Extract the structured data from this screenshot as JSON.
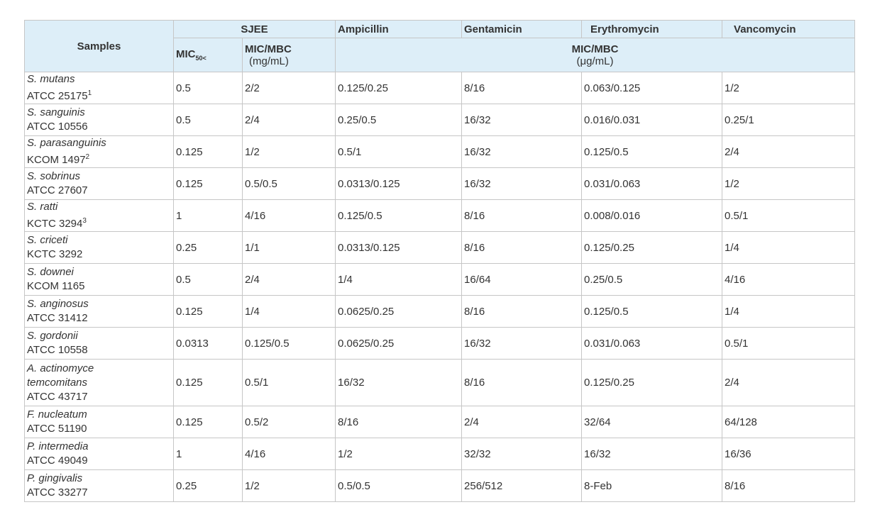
{
  "header": {
    "samples": "Samples",
    "sjee": "SJEE",
    "ampicillin": "Ampicillin",
    "gentamicin": "Gentamicin",
    "erythromycin": "Erythromycin",
    "vancomycin": "Vancomycin",
    "mic_base": "MIC",
    "mic_sub": "50<",
    "mic_mbc": "MIC/MBC",
    "unit_sjee": "(mg/mL)",
    "unit_abx": "(μg/mL)"
  },
  "rows": [
    {
      "species": "S. mutans",
      "strain": "ATCC 25175",
      "sup": "1",
      "mic50": "0.5",
      "sjee": "2/2",
      "ampicillin": "0.125/0.25",
      "gentamicin": "8/16",
      "erythromycin": "0.063/0.125",
      "vancomycin": "1/2"
    },
    {
      "species": "S. sanguinis",
      "strain": "ATCC 10556",
      "sup": "",
      "mic50": "0.5",
      "sjee": "2/4",
      "ampicillin": "0.25/0.5",
      "gentamicin": "16/32",
      "erythromycin": "0.016/0.031",
      "vancomycin": "0.25/1"
    },
    {
      "species": "S. parasanguinis",
      "strain": "KCOM 1497",
      "sup": "2",
      "mic50": "0.125",
      "sjee": "1/2",
      "ampicillin": "0.5/1",
      "gentamicin": "16/32",
      "erythromycin": "0.125/0.5",
      "vancomycin": "2/4"
    },
    {
      "species": "S. sobrinus",
      "strain": "ATCC 27607",
      "sup": "",
      "mic50": "0.125",
      "sjee": "0.5/0.5",
      "ampicillin": "0.0313/0.125",
      "gentamicin": "16/32",
      "erythromycin": "0.031/0.063",
      "vancomycin": "1/2"
    },
    {
      "species": "S. ratti",
      "strain": "KCTC 3294",
      "sup": "3",
      "mic50": "1",
      "sjee": "4/16",
      "ampicillin": "0.125/0.5",
      "gentamicin": "8/16",
      "erythromycin": "0.008/0.016",
      "vancomycin": "0.5/1"
    },
    {
      "species": "S. criceti",
      "strain": "KCTC 3292",
      "sup": "",
      "mic50": "0.25",
      "sjee": "1/1",
      "ampicillin": "0.0313/0.125",
      "gentamicin": "8/16",
      "erythromycin": "0.125/0.25",
      "vancomycin": "1/4"
    },
    {
      "species": "S. downei",
      "strain": "KCOM 1165",
      "sup": "",
      "mic50": "0.5",
      "sjee": "2/4",
      "ampicillin": "1/4",
      "gentamicin": "16/64",
      "erythromycin": "0.25/0.5",
      "vancomycin": "4/16"
    },
    {
      "species": "S. anginosus",
      "strain": "ATCC 31412",
      "sup": "",
      "mic50": "0.125",
      "sjee": "1/4",
      "ampicillin": "0.0625/0.25",
      "gentamicin": "8/16",
      "erythromycin": "0.125/0.5",
      "vancomycin": "1/4"
    },
    {
      "species": "S. gordonii",
      "strain": "ATCC 10558",
      "sup": "",
      "mic50": "0.0313",
      "sjee": "0.125/0.5",
      "ampicillin": "0.0625/0.25",
      "gentamicin": "16/32",
      "erythromycin": "0.031/0.063",
      "vancomycin": "0.5/1"
    },
    {
      "species": "A. actinomyce temcomitans",
      "strain": "ATCC 43717",
      "sup": "",
      "mic50": "0.125",
      "sjee": "0.5/1",
      "ampicillin": "16/32",
      "gentamicin": "8/16",
      "erythromycin": "0.125/0.25",
      "vancomycin": "2/4",
      "tall": true
    },
    {
      "species": "F. nucleatum",
      "strain": "ATCC 51190",
      "sup": "",
      "mic50": "0.125",
      "sjee": "0.5/2",
      "ampicillin": "8/16",
      "gentamicin": "2/4",
      "erythromycin": "32/64",
      "vancomycin": "64/128"
    },
    {
      "species": "P. intermedia",
      "strain": "ATCC 49049",
      "sup": "",
      "mic50": "1",
      "sjee": "4/16",
      "ampicillin": "1/2",
      "gentamicin": "32/32",
      "erythromycin": "16/32",
      "vancomycin": "16/36"
    },
    {
      "species": "P. gingivalis",
      "strain": "ATCC 33277",
      "sup": "",
      "mic50": "0.25",
      "sjee": "1/2",
      "ampicillin": "0.5/0.5",
      "gentamicin": "256/512",
      "erythromycin": "8-Feb",
      "vancomycin": "8/16"
    }
  ]
}
